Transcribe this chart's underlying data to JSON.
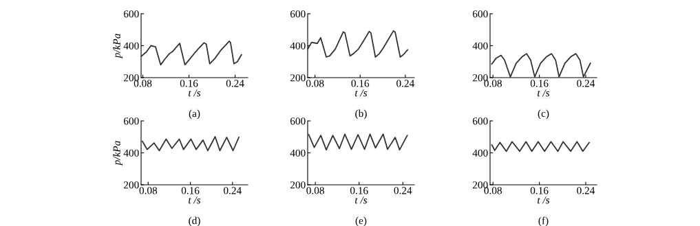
{
  "chart_data": [
    {
      "type": "line",
      "xlabel": "t /s",
      "ylabel": "p/kPa",
      "annotations": [
        "(a)"
      ],
      "xlim": [
        0.077,
        0.262
      ],
      "ylim": [
        200,
        600
      ],
      "xticks": [
        0.08,
        0.16,
        0.24
      ],
      "yticks": [
        200,
        400,
        600
      ],
      "grid": false,
      "legend": false,
      "series": [
        {
          "color": "#333333",
          "x": [
            0.078,
            0.086,
            0.094,
            0.102,
            0.111,
            0.118,
            0.126,
            0.132,
            0.142,
            0.144,
            0.153,
            0.16,
            0.17,
            0.18,
            0.186,
            0.19,
            0.196,
            0.205,
            0.215,
            0.23,
            0.232,
            0.238,
            0.244,
            0.251
          ],
          "values": [
            336,
            360,
            400,
            393,
            280,
            315,
            350,
            365,
            407,
            414,
            280,
            310,
            355,
            395,
            418,
            410,
            287,
            320,
            370,
            428,
            420,
            287,
            300,
            343
          ]
        }
      ]
    },
    {
      "type": "line",
      "xlabel": "t /s",
      "annotations": [
        "(b)"
      ],
      "xlim": [
        0.067,
        0.256
      ],
      "ylim": [
        200,
        600
      ],
      "xticks": [
        0.08,
        0.16,
        0.24
      ],
      "yticks": [
        200,
        400,
        600
      ],
      "grid": false,
      "legend": false,
      "series": [
        {
          "color": "#333333",
          "x": [
            0.067,
            0.074,
            0.084,
            0.09,
            0.1,
            0.106,
            0.116,
            0.124,
            0.13,
            0.133,
            0.142,
            0.148,
            0.157,
            0.166,
            0.176,
            0.179,
            0.187,
            0.194,
            0.201,
            0.21,
            0.219,
            0.222,
            0.231,
            0.237,
            0.244
          ],
          "values": [
            378,
            421,
            414,
            450,
            329,
            336,
            379,
            440,
            486,
            480,
            336,
            350,
            379,
            430,
            489,
            480,
            329,
            350,
            386,
            440,
            493,
            485,
            329,
            345,
            374
          ]
        }
      ]
    },
    {
      "type": "line",
      "xlabel": "t /s",
      "annotations": [
        "(c)"
      ],
      "xlim": [
        0.075,
        0.259
      ],
      "ylim": [
        200,
        600
      ],
      "xticks": [
        0.08,
        0.16,
        0.24
      ],
      "yticks": [
        200,
        400,
        600
      ],
      "grid": false,
      "legend": false,
      "series": [
        {
          "color": "#333333",
          "x": [
            0.078,
            0.085,
            0.094,
            0.1,
            0.11,
            0.12,
            0.13,
            0.138,
            0.145,
            0.152,
            0.162,
            0.172,
            0.181,
            0.188,
            0.194,
            0.204,
            0.214,
            0.223,
            0.23,
            0.236,
            0.248
          ],
          "values": [
            285,
            320,
            340,
            310,
            205,
            290,
            330,
            350,
            310,
            205,
            290,
            330,
            350,
            310,
            205,
            290,
            330,
            350,
            310,
            205,
            290
          ]
        }
      ]
    },
    {
      "type": "line",
      "xlabel": "t /s",
      "ylabel": "p/kPa",
      "annotations": [
        "(d)"
      ],
      "xlim": [
        0.0665,
        0.269
      ],
      "ylim": [
        200,
        600
      ],
      "xticks": [
        0.08,
        0.16,
        0.24
      ],
      "yticks": [
        200,
        400,
        600
      ],
      "grid": false,
      "legend": false,
      "series": [
        {
          "color": "#333333",
          "x": [
            0.069,
            0.078,
            0.091,
            0.101,
            0.114,
            0.125,
            0.139,
            0.147,
            0.161,
            0.171,
            0.184,
            0.193,
            0.207,
            0.216,
            0.229,
            0.241,
            0.252
          ],
          "values": [
            472,
            421,
            462,
            414,
            486,
            428,
            486,
            421,
            486,
            421,
            480,
            414,
            501,
            414,
            497,
            414,
            497
          ]
        }
      ]
    },
    {
      "type": "line",
      "xlabel": "t /s",
      "annotations": [
        "(e)"
      ],
      "xlim": [
        0.066,
        0.261
      ],
      "ylim": [
        200,
        600
      ],
      "xticks": [
        0.08,
        0.16,
        0.24
      ],
      "yticks": [
        200,
        400,
        600
      ],
      "grid": false,
      "legend": false,
      "series": [
        {
          "color": "#333333",
          "x": [
            0.068,
            0.078,
            0.09,
            0.1,
            0.112,
            0.124,
            0.134,
            0.146,
            0.158,
            0.17,
            0.18,
            0.19,
            0.204,
            0.212,
            0.226,
            0.234,
            0.248
          ],
          "values": [
            514,
            434,
            509,
            419,
            509,
            427,
            517,
            422,
            514,
            422,
            517,
            431,
            517,
            422,
            497,
            419,
            509
          ]
        }
      ]
    },
    {
      "type": "line",
      "xlabel": "t /s",
      "annotations": [
        "(f)"
      ],
      "xlim": [
        0.075,
        0.259
      ],
      "ylim": [
        200,
        600
      ],
      "xticks": [
        0.08,
        0.16,
        0.24
      ],
      "yticks": [
        200,
        400,
        600
      ],
      "grid": false,
      "legend": false,
      "series": [
        {
          "color": "#333333",
          "x": [
            0.078,
            0.083,
            0.092,
            0.103,
            0.113,
            0.126,
            0.137,
            0.147,
            0.158,
            0.169,
            0.18,
            0.192,
            0.201,
            0.214,
            0.225,
            0.235,
            0.246
          ],
          "values": [
            450,
            415,
            465,
            410,
            470,
            410,
            470,
            410,
            470,
            410,
            470,
            410,
            470,
            410,
            470,
            410,
            465
          ]
        }
      ]
    }
  ]
}
